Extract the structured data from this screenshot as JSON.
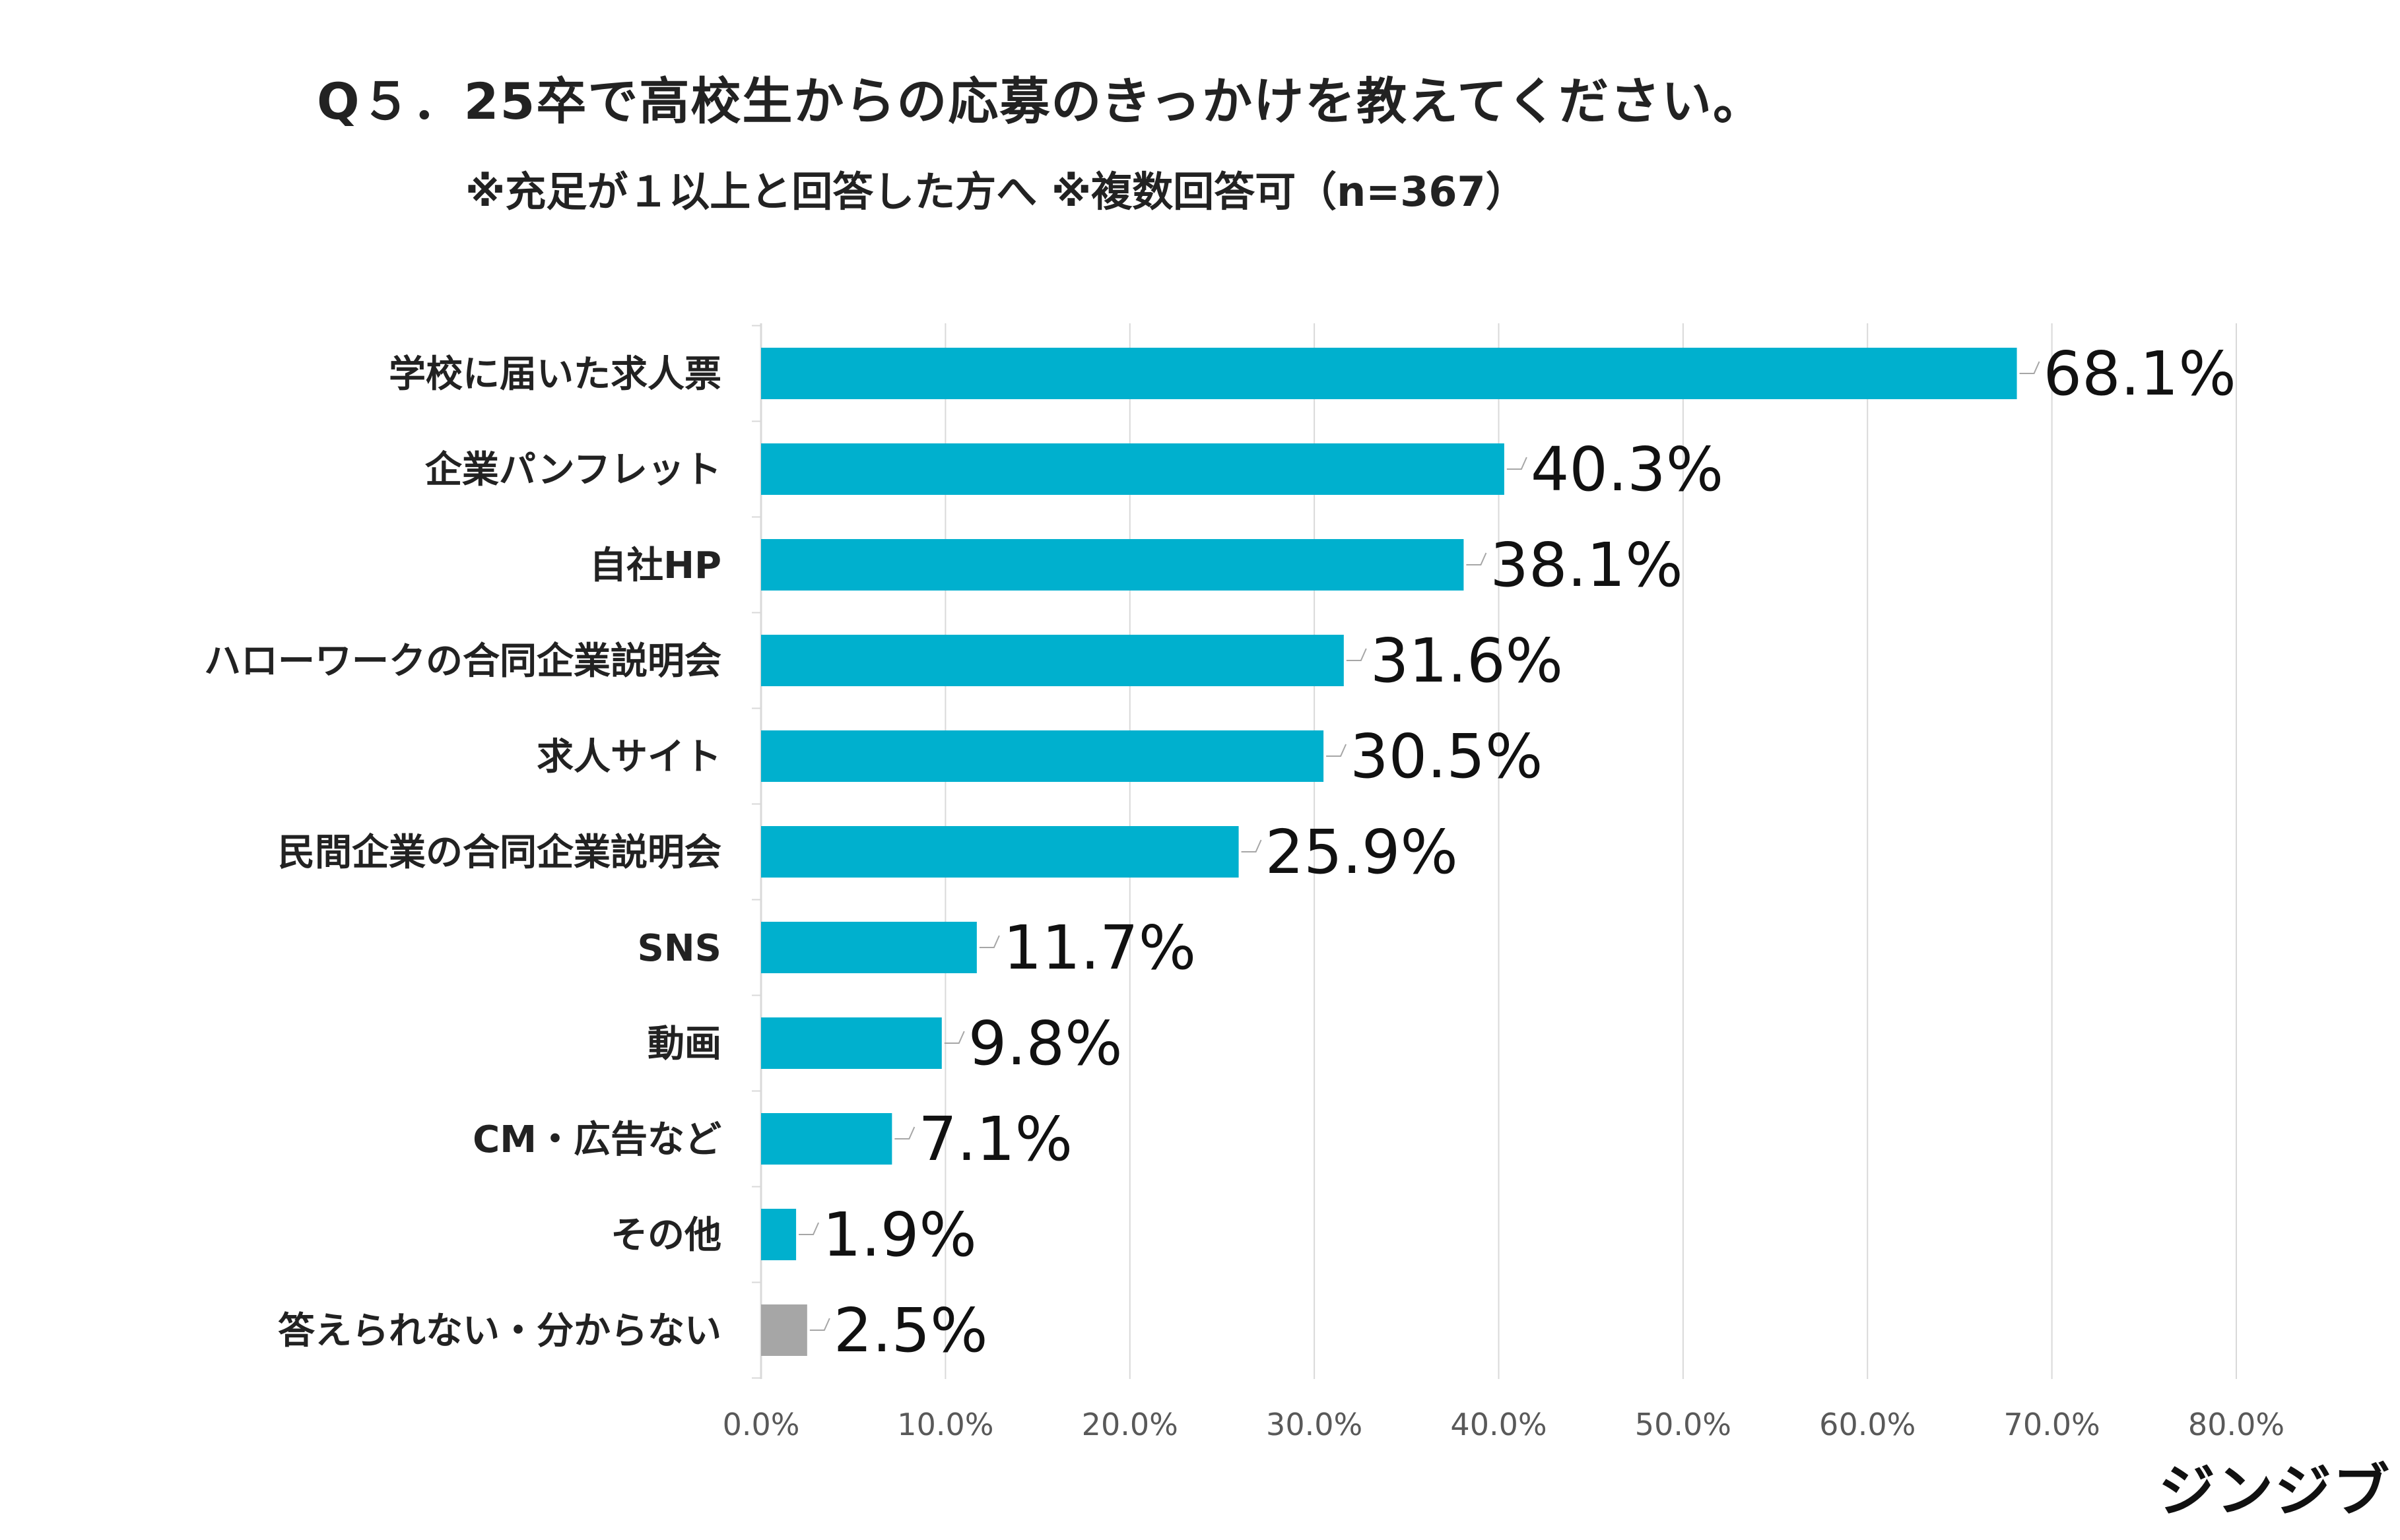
{
  "chart_data": {
    "type": "bar",
    "orientation": "horizontal",
    "title": "Q５．25卒で高校生からの応募のきっかけを教えてください。",
    "subtitle": "※充足が１以上と回答した方へ ※複数回答可（n=367）",
    "categories": [
      "学校に届いた求人票",
      "企業パンフレット",
      "自社HP",
      "ハローワークの合同企業説明会",
      "求人サイト",
      "民間企業の合同企業説明会",
      "SNS",
      "動画",
      "CM・広告など",
      "その他",
      "答えられない・分からない"
    ],
    "values": [
      68.1,
      40.3,
      38.1,
      31.6,
      30.5,
      25.9,
      11.7,
      9.8,
      7.1,
      1.9,
      2.5
    ],
    "value_labels": [
      "68.1%",
      "40.3%",
      "38.1%",
      "31.6%",
      "30.5%",
      "25.9%",
      "11.7%",
      "9.8%",
      "7.1%",
      "1.9%",
      "2.5%"
    ],
    "x_ticks": [
      "0.0%",
      "10.0%",
      "20.0%",
      "30.0%",
      "40.0%",
      "50.0%",
      "60.0%",
      "70.0%",
      "80.0%"
    ],
    "xlim": [
      0,
      80
    ],
    "grid": true,
    "legend": "none",
    "colors": {
      "bar": "#00B0CE",
      "bar_muted": "#A6A6A6",
      "grid": "#D9D9D9",
      "text": "#222222"
    },
    "bar_color_keys": [
      "bar",
      "bar",
      "bar",
      "bar",
      "bar",
      "bar",
      "bar",
      "bar",
      "bar",
      "bar",
      "bar_muted"
    ]
  },
  "brand": {
    "logo_text": "ジンジブ"
  }
}
